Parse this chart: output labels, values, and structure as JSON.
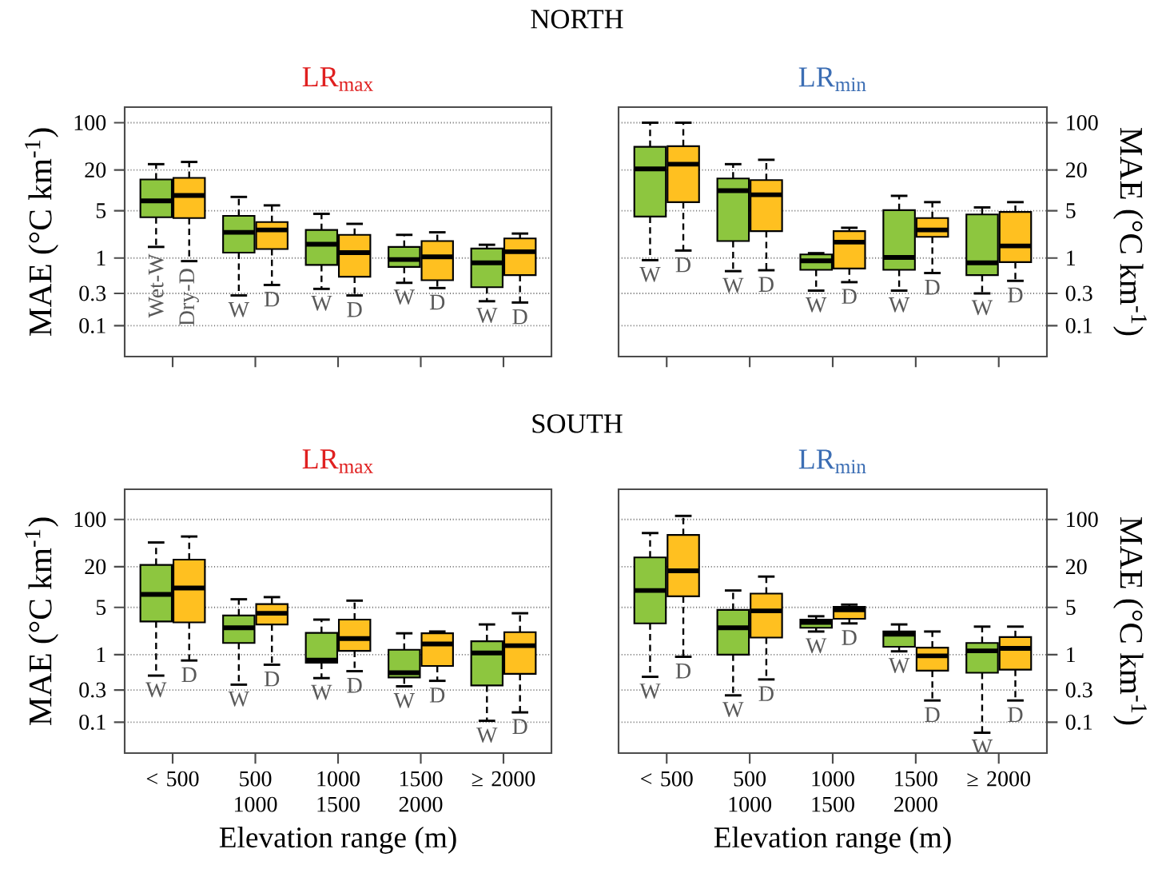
{
  "chart_data": [
    {
      "type": "box",
      "title": "NORTH",
      "subtitle": "LR$_{max}$",
      "ylabel": "MAE (°C km$^{-1}$)",
      "log": true,
      "grid": "y",
      "tick_labels": "y",
      "categories": [
        null,
        null,
        null,
        null,
        null
      ],
      "ylim": [
        0.035,
        170
      ],
      "yticks": [
        0.1,
        0.3,
        1,
        5,
        20,
        100
      ],
      "series": [
        {
          "color": "#8dc63f",
          "boxes": [
            {
              "low": 1.46,
              "q1": 4.0,
              "median": 7.0,
              "q3": 14.5,
              "high": 24.4
            },
            {
              "low": 0.28,
              "q1": 1.2,
              "median": 2.4,
              "q3": 4.2,
              "high": 8.0
            },
            {
              "low": 0.35,
              "q1": 0.79,
              "median": 1.6,
              "q3": 2.6,
              "high": 4.5
            },
            {
              "low": 0.43,
              "q1": 0.74,
              "median": 0.95,
              "q3": 1.46,
              "high": 2.2
            },
            {
              "low": 0.23,
              "q1": 0.37,
              "median": 0.85,
              "q3": 1.38,
              "high": 1.57
            }
          ]
        },
        {
          "color": "#ffc020",
          "boxes": [
            {
              "low": 0.9,
              "q1": 3.9,
              "median": 8.4,
              "q3": 15.3,
              "high": 26.3
            },
            {
              "low": 0.4,
              "q1": 1.36,
              "median": 2.6,
              "q3": 3.4,
              "high": 6.0
            },
            {
              "low": 0.28,
              "q1": 0.53,
              "median": 1.2,
              "q3": 2.2,
              "high": 3.2
            },
            {
              "low": 0.36,
              "q1": 0.47,
              "median": 1.04,
              "q3": 1.78,
              "high": 2.4
            },
            {
              "low": 0.22,
              "q1": 0.56,
              "median": 1.24,
              "q3": 1.95,
              "high": 2.3
            }
          ]
        }
      ],
      "annotations": [
        "Wet-W",
        "Dry-D",
        "W",
        "D",
        "W",
        "D",
        "W",
        "D",
        "W",
        "D"
      ]
    },
    {
      "type": "box",
      "subtitle": "LR$_{min}$",
      "ylabel": "MAE (°C km$^{-1}$)",
      "log": true,
      "grid": "y",
      "tick_labels": "y",
      "categories": [
        null,
        null,
        null,
        null,
        null
      ],
      "ylim": [
        0.035,
        170
      ],
      "yticks": [
        0.1,
        0.3,
        1,
        5,
        20,
        100
      ],
      "series": [
        {
          "color": "#8dc63f",
          "boxes": [
            {
              "low": 0.93,
              "q1": 4.1,
              "median": 20.8,
              "q3": 44,
              "high": 100
            },
            {
              "low": 0.64,
              "q1": 1.78,
              "median": 9.9,
              "q3": 15,
              "high": 24.4
            },
            {
              "low": 0.33,
              "q1": 0.67,
              "median": 0.91,
              "q3": 1.13,
              "high": 1.18
            },
            {
              "low": 0.33,
              "q1": 0.67,
              "median": 1.02,
              "q3": 5.1,
              "high": 8.3
            },
            {
              "low": 0.3,
              "q1": 0.56,
              "median": 0.85,
              "q3": 4.4,
              "high": 5.6
            }
          ]
        },
        {
          "color": "#ffc020",
          "boxes": [
            {
              "low": 1.29,
              "q1": 6.7,
              "median": 24.4,
              "q3": 45,
              "high": 100
            },
            {
              "low": 0.66,
              "q1": 2.5,
              "median": 8.6,
              "q3": 14.2,
              "high": 28.3
            },
            {
              "low": 0.44,
              "q1": 0.7,
              "median": 1.72,
              "q3": 2.5,
              "high": 2.8
            },
            {
              "low": 0.6,
              "q1": 2.06,
              "median": 2.6,
              "q3": 3.9,
              "high": 6.7
            },
            {
              "low": 0.46,
              "q1": 0.87,
              "median": 1.51,
              "q3": 4.8,
              "high": 6.7
            }
          ]
        }
      ],
      "annotations": [
        "W",
        "D",
        "W",
        "D",
        "W",
        "D",
        "W",
        "D",
        "W",
        "D"
      ]
    },
    {
      "type": "box",
      "title": "SOUTH",
      "subtitle": "LR$_{max}$",
      "ylabel": "MAE (°C km$^{-1}$)",
      "xlabel": "Elevation range (m)",
      "log": true,
      "grid": "y",
      "categories": [
        "< 500",
        "500 1000",
        "1000 1500",
        "1500 2000",
        "≥ 2000"
      ],
      "ylim": [
        0.035,
        280
      ],
      "yticks": [
        0.1,
        0.3,
        1,
        5,
        20,
        100
      ],
      "series": [
        {
          "color": "#8dc63f",
          "boxes": [
            {
              "low": 0.49,
              "q1": 3.1,
              "median": 7.8,
              "q3": 21.3,
              "high": 45.7
            },
            {
              "low": 0.36,
              "q1": 1.49,
              "median": 2.5,
              "q3": 3.8,
              "high": 6.6
            },
            {
              "low": 0.45,
              "q1": 0.76,
              "median": 0.83,
              "q3": 2.1,
              "high": 3.3
            },
            {
              "low": 0.34,
              "q1": 0.46,
              "median": 0.54,
              "q3": 1.18,
              "high": 2.07
            },
            {
              "low": 0.105,
              "q1": 0.35,
              "median": 1.06,
              "q3": 1.58,
              "high": 2.8
            }
          ]
        },
        {
          "color": "#ffc020",
          "boxes": [
            {
              "low": 0.82,
              "q1": 3.0,
              "median": 9.7,
              "q3": 25.5,
              "high": 56
            },
            {
              "low": 0.71,
              "q1": 2.8,
              "median": 4.1,
              "q3": 5.6,
              "high": 7.1
            },
            {
              "low": 0.57,
              "q1": 1.14,
              "median": 1.73,
              "q3": 3.3,
              "high": 6.3
            },
            {
              "low": 0.41,
              "q1": 0.68,
              "median": 1.44,
              "q3": 2.07,
              "high": 2.2
            },
            {
              "low": 0.14,
              "q1": 0.52,
              "median": 1.36,
              "q3": 2.15,
              "high": 4.1
            }
          ]
        }
      ],
      "annotations": [
        "W",
        "D",
        "W",
        "D",
        "W",
        "D",
        "W",
        "D",
        "W",
        "D"
      ]
    },
    {
      "type": "box",
      "subtitle": "LR$_{min}$",
      "ylabel": "MAE (°C km$^{-1}$)",
      "xlabel": "Elevation range (m)",
      "log": true,
      "grid": "y",
      "categories": [
        "< 500",
        "500 1000",
        "1000 1500",
        "1500 2000",
        "≥ 2000"
      ],
      "ylim": [
        0.035,
        280
      ],
      "yticks": [
        0.1,
        0.3,
        1,
        5,
        20,
        100
      ],
      "series": [
        {
          "color": "#8dc63f",
          "boxes": [
            {
              "low": 0.47,
              "q1": 2.9,
              "median": 8.9,
              "q3": 27.5,
              "high": 63
            },
            {
              "low": 0.25,
              "q1": 1.0,
              "median": 2.5,
              "q3": 4.6,
              "high": 8.9
            },
            {
              "low": 2.2,
              "q1": 2.5,
              "median": 3.0,
              "q3": 3.3,
              "high": 3.7
            },
            {
              "low": 1.12,
              "q1": 1.31,
              "median": 2.0,
              "q3": 2.2,
              "high": 2.8
            },
            {
              "low": 0.07,
              "q1": 0.54,
              "median": 1.14,
              "q3": 1.49,
              "high": 2.6
            }
          ]
        },
        {
          "color": "#ffc020",
          "boxes": [
            {
              "low": 0.93,
              "q1": 7.3,
              "median": 17.4,
              "q3": 59,
              "high": 113
            },
            {
              "low": 0.43,
              "q1": 1.79,
              "median": 4.45,
              "q3": 8.0,
              "high": 14.3
            },
            {
              "low": 2.9,
              "q1": 3.4,
              "median": 4.6,
              "q3": 5.1,
              "high": 5.5
            },
            {
              "low": 0.21,
              "q1": 0.58,
              "median": 0.96,
              "q3": 1.27,
              "high": 2.2
            },
            {
              "low": 0.21,
              "q1": 0.6,
              "median": 1.24,
              "q3": 1.82,
              "high": 2.6
            }
          ]
        }
      ],
      "annotations": [
        "W",
        "D",
        "W",
        "D",
        "W",
        "D",
        "W",
        "D",
        "W",
        "D"
      ]
    }
  ]
}
